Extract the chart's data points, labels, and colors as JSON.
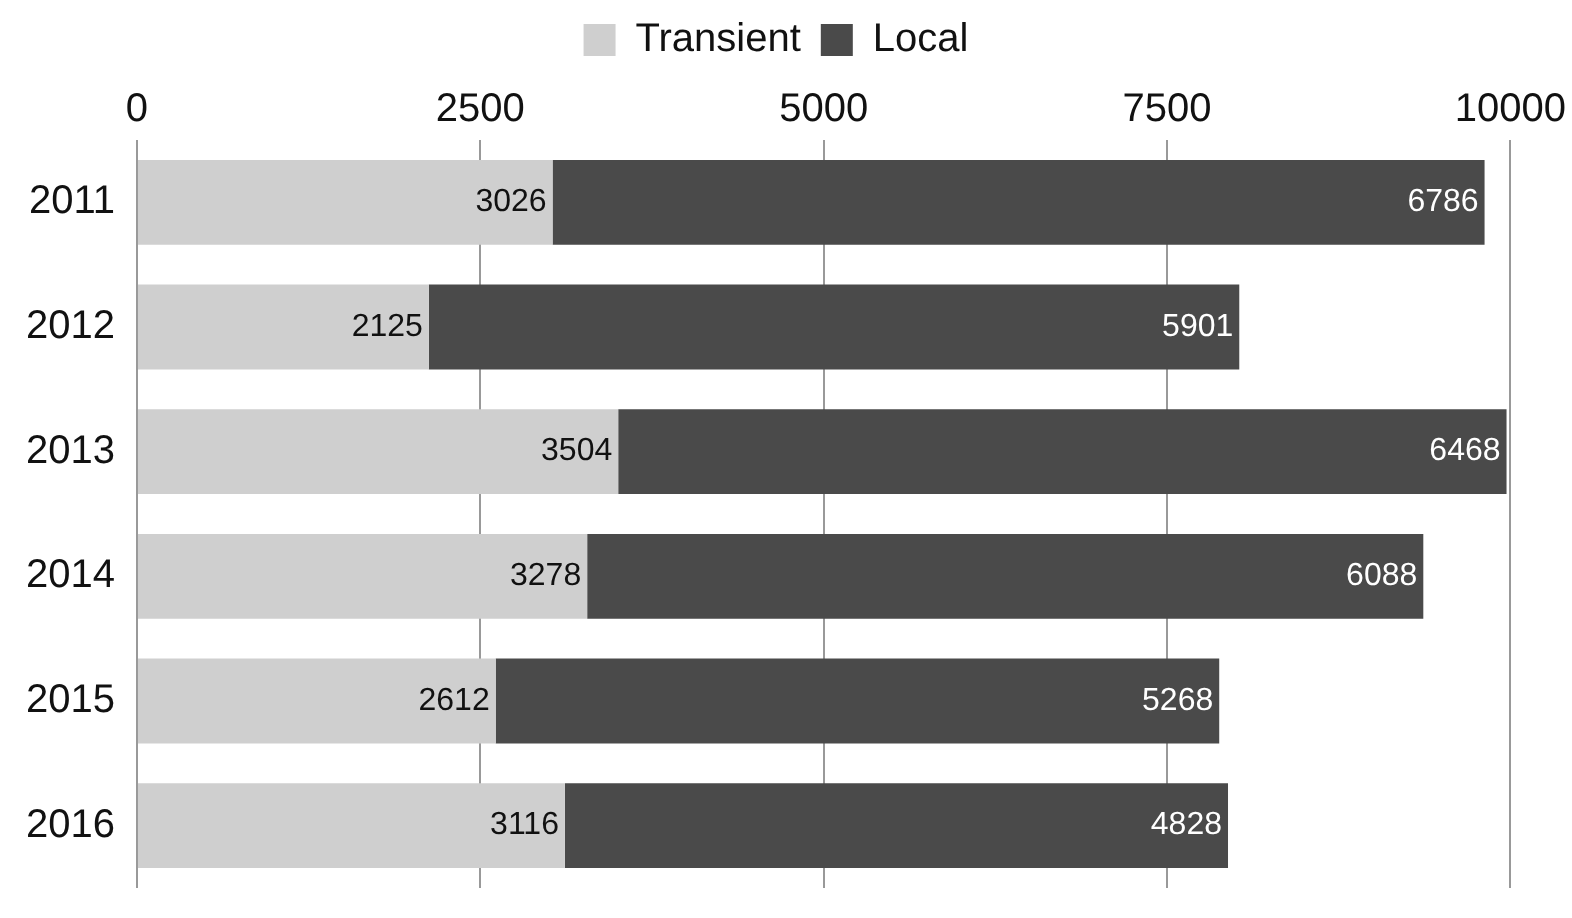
{
  "chart_data": {
    "type": "bar",
    "orientation": "horizontal",
    "stacked": true,
    "categories": [
      "2011",
      "2012",
      "2013",
      "2014",
      "2015",
      "2016"
    ],
    "series": [
      {
        "name": "Transient",
        "color": "#cfcfcf",
        "values": [
          3026,
          2125,
          3504,
          3278,
          2612,
          3116
        ]
      },
      {
        "name": "Local",
        "color": "#4a4a4a",
        "values": [
          6786,
          5901,
          6468,
          6088,
          5268,
          4828
        ]
      }
    ],
    "xlim": [
      0,
      10000
    ],
    "xticks": [
      0,
      2500,
      5000,
      7500,
      10000
    ],
    "grid": "x",
    "legend": "top",
    "data_labels": true
  }
}
